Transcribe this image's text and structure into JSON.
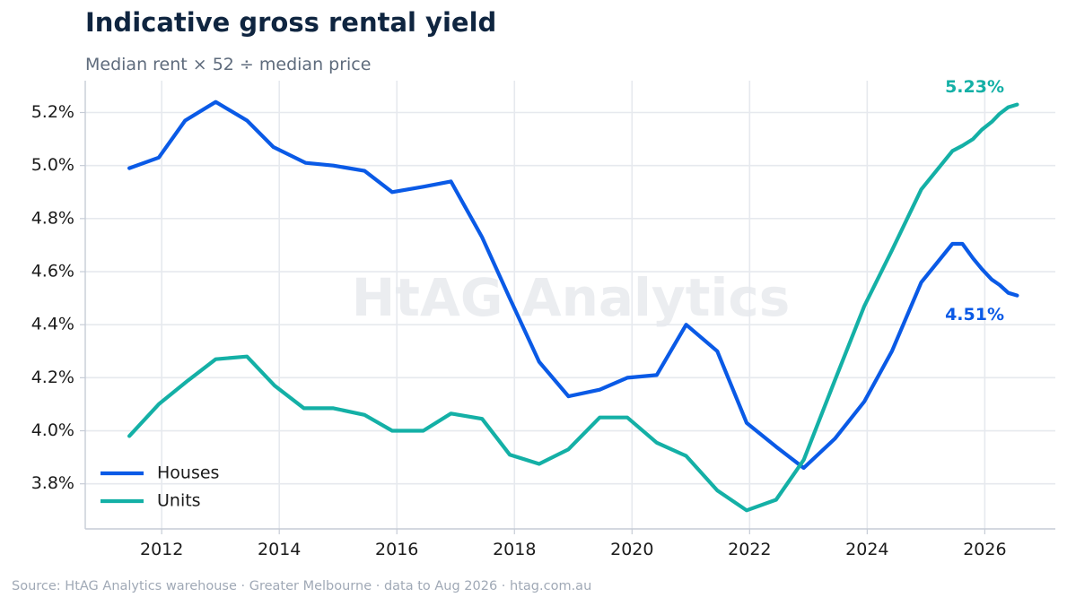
{
  "header": {
    "title": "Indicative gross rental yield",
    "subtitle": "Median rent × 52 ÷ median price"
  },
  "footer": {
    "source": "Source: HtAG Analytics warehouse  ·  Greater Melbourne  ·  data to Aug 2026  ·  htag.com.au"
  },
  "watermark": "HtAG Analytics",
  "colors": {
    "houses": "#0a5ae6",
    "units": "#14b0a6",
    "grid": "#e6e9ee",
    "axis": "#c6ccd6"
  },
  "chart_data": {
    "type": "line",
    "title": "Indicative gross rental yield",
    "subtitle": "Median rent × 52 ÷ median price",
    "xlim": [
      2010.7,
      2027.2
    ],
    "ylim": [
      3.63,
      5.32
    ],
    "x_ticks": [
      2012,
      2014,
      2016,
      2018,
      2020,
      2022,
      2024,
      2026
    ],
    "y_ticks": [
      3.8,
      4.0,
      4.2,
      4.4,
      4.6,
      4.8,
      5.0,
      5.2
    ],
    "y_tick_labels": [
      "3.8%",
      "4.0%",
      "4.2%",
      "4.4%",
      "4.6%",
      "4.8%",
      "5.0%",
      "5.2%"
    ],
    "grid": true,
    "legend": "bottom-left",
    "series": [
      {
        "name": "Houses",
        "color": "#0a5ae6",
        "end_label": "4.51%",
        "x": [
          2011.45,
          2011.95,
          2012.4,
          2012.92,
          2013.45,
          2013.9,
          2014.45,
          2014.92,
          2015.45,
          2015.92,
          2016.45,
          2016.92,
          2017.45,
          2017.92,
          2018.42,
          2018.92,
          2019.45,
          2019.92,
          2020.42,
          2020.92,
          2021.45,
          2021.95,
          2022.45,
          2022.92,
          2023.45,
          2023.95,
          2024.42,
          2024.92,
          2025.45,
          2025.62,
          2025.8,
          2025.95,
          2026.12,
          2026.25,
          2026.4,
          2026.55
        ],
        "values": [
          4.99,
          5.03,
          5.17,
          5.24,
          5.17,
          5.07,
          5.01,
          5.0,
          4.98,
          4.9,
          4.92,
          4.94,
          4.73,
          4.5,
          4.26,
          4.13,
          4.155,
          4.2,
          4.21,
          4.4,
          4.3,
          4.03,
          3.94,
          3.86,
          3.97,
          4.11,
          4.3,
          4.56,
          4.705,
          4.705,
          4.65,
          4.61,
          4.57,
          4.55,
          4.52,
          4.51
        ]
      },
      {
        "name": "Units",
        "color": "#14b0a6",
        "end_label": "5.23%",
        "x": [
          2011.45,
          2011.95,
          2012.45,
          2012.92,
          2013.45,
          2013.92,
          2014.42,
          2014.92,
          2015.45,
          2015.92,
          2016.45,
          2016.92,
          2017.45,
          2017.92,
          2018.42,
          2018.92,
          2019.45,
          2019.92,
          2020.42,
          2020.92,
          2021.45,
          2021.95,
          2022.45,
          2022.92,
          2023.45,
          2023.95,
          2024.42,
          2024.92,
          2025.45,
          2025.62,
          2025.8,
          2025.95,
          2026.12,
          2026.25,
          2026.4,
          2026.55
        ],
        "values": [
          3.98,
          4.1,
          4.19,
          4.27,
          4.28,
          4.17,
          4.085,
          4.085,
          4.06,
          4.0,
          4.0,
          4.065,
          4.045,
          3.91,
          3.875,
          3.93,
          4.05,
          4.05,
          3.955,
          3.905,
          3.775,
          3.7,
          3.74,
          3.89,
          4.19,
          4.47,
          4.68,
          4.91,
          5.055,
          5.075,
          5.1,
          5.135,
          5.165,
          5.195,
          5.22,
          5.23
        ]
      }
    ]
  }
}
